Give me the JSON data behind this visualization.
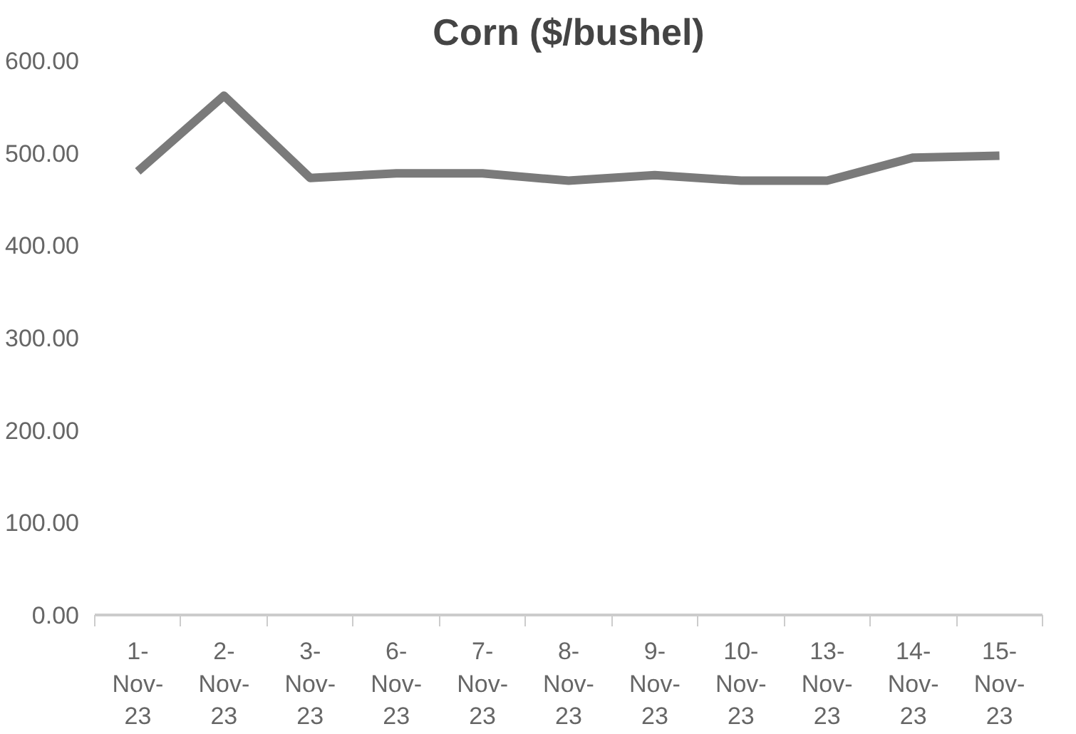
{
  "chart_data": {
    "type": "line",
    "title": "Corn ($/bushel)",
    "categories": [
      "1-Nov-23",
      "2-Nov-23",
      "3-Nov-23",
      "6-Nov-23",
      "7-Nov-23",
      "8-Nov-23",
      "9-Nov-23",
      "10-Nov-23",
      "13-Nov-23",
      "14-Nov-23",
      "15-Nov-23"
    ],
    "series": [
      {
        "color": "#7a7a7a",
        "values": [
          480,
          562,
          473,
          478,
          478,
          470,
          476,
          470,
          470,
          495,
          497
        ]
      }
    ],
    "ylim": [
      0,
      600
    ],
    "yticks": [
      {
        "value": 0,
        "label": "0.00"
      },
      {
        "value": 100,
        "label": "100.00"
      },
      {
        "value": 200,
        "label": "200.00"
      },
      {
        "value": 300,
        "label": "300.00"
      },
      {
        "value": 400,
        "label": "400.00"
      },
      {
        "value": 500,
        "label": "500.00"
      },
      {
        "value": 600,
        "label": "600.00"
      }
    ],
    "marker": "none",
    "line_style": "solid"
  }
}
